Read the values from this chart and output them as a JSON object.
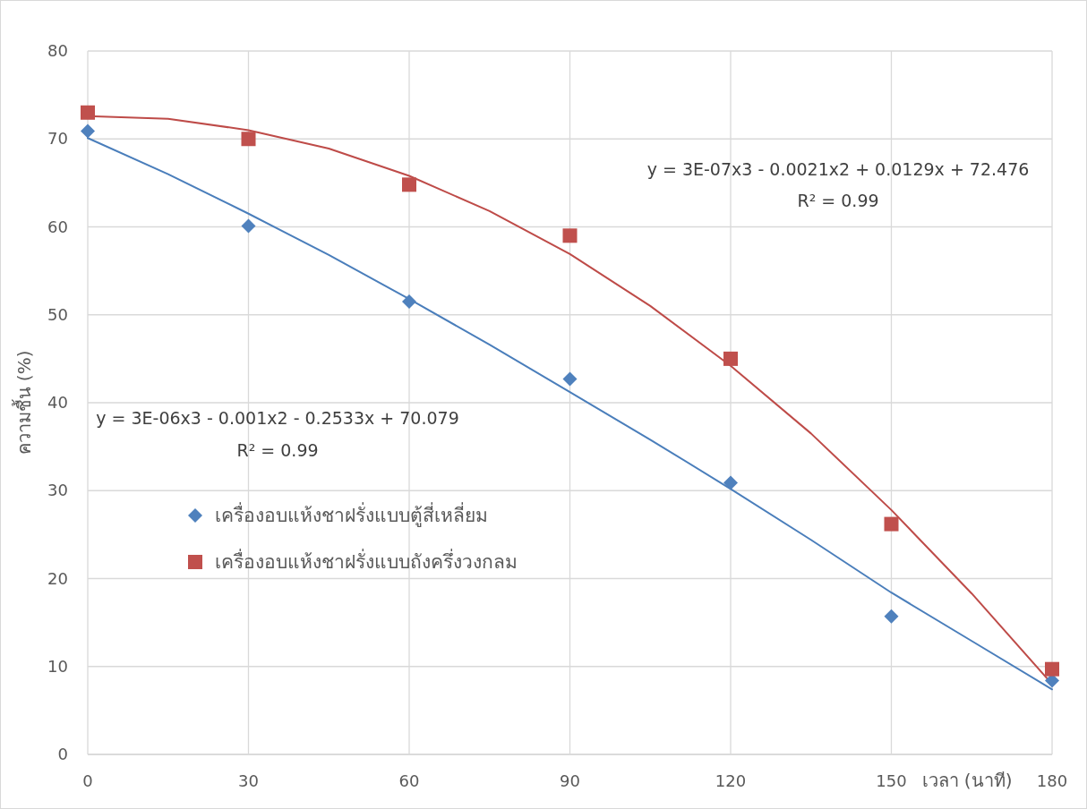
{
  "chart_data": {
    "type": "scatter",
    "xlabel": "เวลา (นาที)",
    "ylabel": "ความชื้น (%)",
    "xlim": [
      0,
      180
    ],
    "xticks": [
      0,
      30,
      60,
      90,
      120,
      150,
      180
    ],
    "ylim": [
      0,
      80
    ],
    "yticks": [
      0,
      10,
      20,
      30,
      40,
      50,
      60,
      70,
      80
    ],
    "grid": true,
    "legend": "left",
    "series": [
      {
        "name": "เครื่องอบแห้งชาฝรั่งแบบตู้สี่เหลี่ยม",
        "marker": "diamond",
        "color": "#4f81bd",
        "x": [
          0,
          30,
          60,
          90,
          120,
          150,
          180
        ],
        "values": [
          70.9,
          60.1,
          51.5,
          42.7,
          30.9,
          15.7,
          8.4
        ]
      },
      {
        "name": "เครื่องอบแห้งชาฝรั่งแบบถังครึ่งวงกลม",
        "marker": "square",
        "color": "#c0504d",
        "x": [
          0,
          30,
          60,
          90,
          120,
          150,
          180
        ],
        "values": [
          73.0,
          70.0,
          64.8,
          59.0,
          45.0,
          26.2,
          9.7
        ]
      },
      {
        "type": "line",
        "color": "#4a7ebb",
        "x": [
          0,
          15,
          30,
          45,
          60,
          75,
          90,
          105,
          120,
          135,
          150,
          165,
          180
        ],
        "values": [
          70.1,
          66.0,
          61.5,
          56.8,
          51.8,
          46.6,
          41.2,
          35.8,
          30.2,
          24.4,
          18.4,
          12.9,
          7.4
        ]
      },
      {
        "type": "line",
        "color": "#be4b48",
        "x": [
          0,
          15,
          30,
          45,
          60,
          75,
          90,
          105,
          120,
          135,
          150,
          165,
          180
        ],
        "values": [
          72.6,
          72.3,
          71.0,
          68.9,
          65.8,
          61.8,
          56.9,
          51.0,
          44.2,
          36.5,
          27.8,
          18.3,
          8.0
        ]
      }
    ],
    "annotations": [
      "y = 3E-06x3 - 0.001x2 - 0.2533x + 70.079",
      "R² = 0.99",
      "y = 3E-07x3 - 0.0021x2 + 0.0129x + 72.476",
      "R² = 0.99"
    ]
  }
}
